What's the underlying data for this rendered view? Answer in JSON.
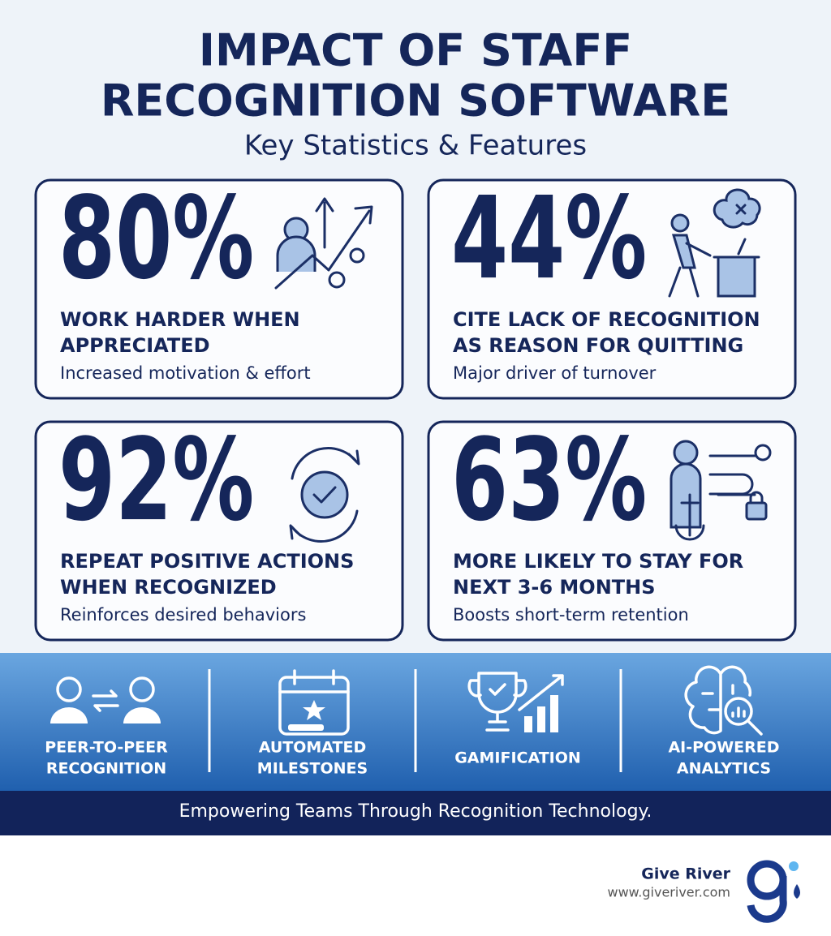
{
  "header": {
    "title_lines": [
      "IMPACT OF STAFF",
      "RECOGNITION SOFTWARE"
    ],
    "subtitle": "Key Statistics & Features"
  },
  "cards": [
    {
      "stat": "80%",
      "heading_lines": [
        "WORK HARDER WHEN",
        "APPRECIATED"
      ],
      "description": "Increased motivation & effort"
    },
    {
      "stat": "44%",
      "heading_lines": [
        "CITE LACK OF RECOGNITION",
        "AS REASON FOR QUITTING"
      ],
      "description": "Major driver of turnover"
    },
    {
      "stat": "92%",
      "heading_lines": [
        "REPEAT POSITIVE ACTIONS",
        "WHEN RECOGNIZED"
      ],
      "description": "Reinforces desired behaviors"
    },
    {
      "stat": "63%",
      "heading_lines": [
        "MORE LIKELY TO STAY FOR",
        "NEXT 3-6 MONTHS"
      ],
      "description": "Boosts short-term retention"
    }
  ],
  "features": [
    {
      "label_lines": [
        "PEER-TO-PEER",
        "RECOGNITION"
      ]
    },
    {
      "label_lines": [
        "AUTOMATED",
        "MILESTONES"
      ]
    },
    {
      "label_lines": [
        "GAMIFICATION"
      ]
    },
    {
      "label_lines": [
        "AI-POWERED",
        "ANALYTICS"
      ]
    }
  ],
  "tagline": "Empowering Teams Through Recognition Technology.",
  "footer": {
    "brand": "Give River",
    "url": "www.giveriver.com"
  }
}
